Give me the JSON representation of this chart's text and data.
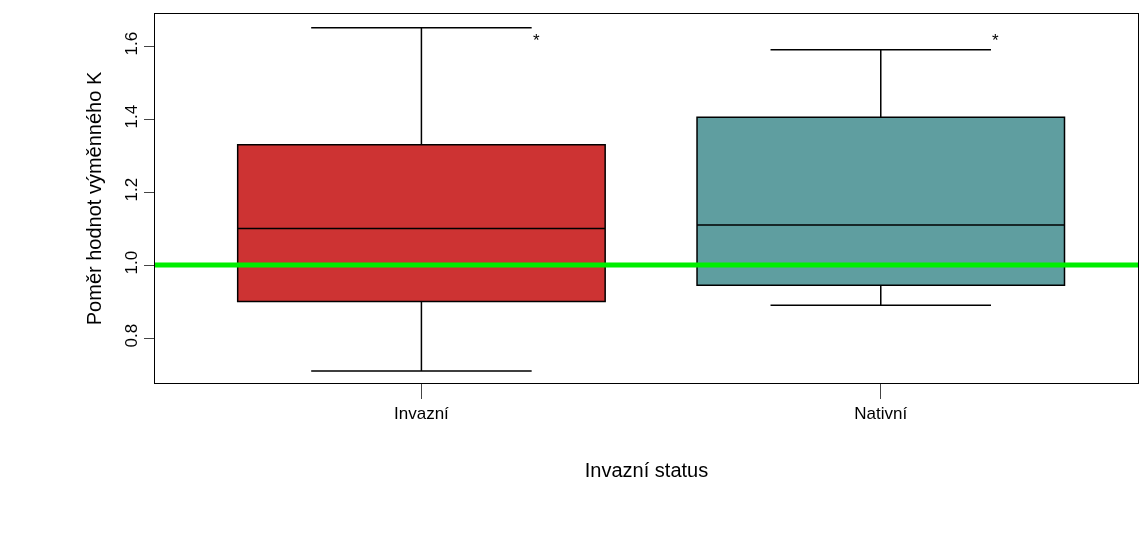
{
  "chart_data": {
    "type": "box",
    "xlabel": "Invazní status",
    "ylabel": "Poměr hodnot výměnného K",
    "categories": [
      "Invazní",
      "Nativní"
    ],
    "boxes": [
      {
        "low": 0.71,
        "q1": 0.9,
        "median": 1.1,
        "q3": 1.33,
        "high": 1.65
      },
      {
        "low": 0.89,
        "q1": 0.945,
        "median": 1.11,
        "q3": 1.405,
        "high": 1.59
      }
    ],
    "colors": [
      "#cd3333",
      "#5f9ea0"
    ],
    "ylim": [
      0.677,
      1.688
    ],
    "yticks": [
      {
        "value": 0.8,
        "label": "0.8"
      },
      {
        "value": 1.0,
        "label": "1.0"
      },
      {
        "value": 1.2,
        "label": "1.2"
      },
      {
        "value": 1.4,
        "label": "1.4"
      },
      {
        "value": 1.6,
        "label": "1.6"
      }
    ],
    "ref_lines": [
      {
        "axis": "y",
        "value": 1.0,
        "color": "#00ee00"
      }
    ],
    "annotations": [
      "*",
      "*"
    ],
    "legend": false
  }
}
